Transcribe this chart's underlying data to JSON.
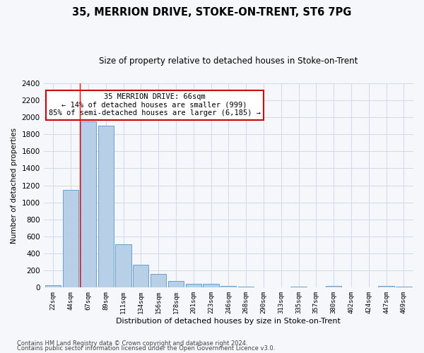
{
  "title": "35, MERRION DRIVE, STOKE-ON-TRENT, ST6 7PG",
  "subtitle": "Size of property relative to detached houses in Stoke-on-Trent",
  "xlabel": "Distribution of detached houses by size in Stoke-on-Trent",
  "ylabel": "Number of detached properties",
  "categories": [
    "22sqm",
    "44sqm",
    "67sqm",
    "89sqm",
    "111sqm",
    "134sqm",
    "156sqm",
    "178sqm",
    "201sqm",
    "223sqm",
    "246sqm",
    "268sqm",
    "290sqm",
    "313sqm",
    "335sqm",
    "357sqm",
    "380sqm",
    "402sqm",
    "424sqm",
    "447sqm",
    "469sqm"
  ],
  "values": [
    30,
    1150,
    1950,
    1900,
    510,
    265,
    160,
    75,
    42,
    42,
    20,
    10,
    5,
    5,
    8,
    5,
    20,
    5,
    5,
    20,
    10
  ],
  "bar_color": "#b8cfe8",
  "bar_edge_color": "#6a9fc8",
  "grid_color": "#d0daea",
  "bg_color": "#f5f7fb",
  "redline_xindex": 1.5,
  "annotation_text": "35 MERRION DRIVE: 66sqm\n← 14% of detached houses are smaller (999)\n85% of semi-detached houses are larger (6,185) →",
  "annotation_box_facecolor": "#ffffff",
  "annotation_box_edgecolor": "#cc0000",
  "ylim_max": 2400,
  "ytick_step": 200,
  "title_fontsize": 11,
  "subtitle_fontsize": 9,
  "footer1": "Contains HM Land Registry data © Crown copyright and database right 2024.",
  "footer2": "Contains public sector information licensed under the Open Government Licence v3.0."
}
